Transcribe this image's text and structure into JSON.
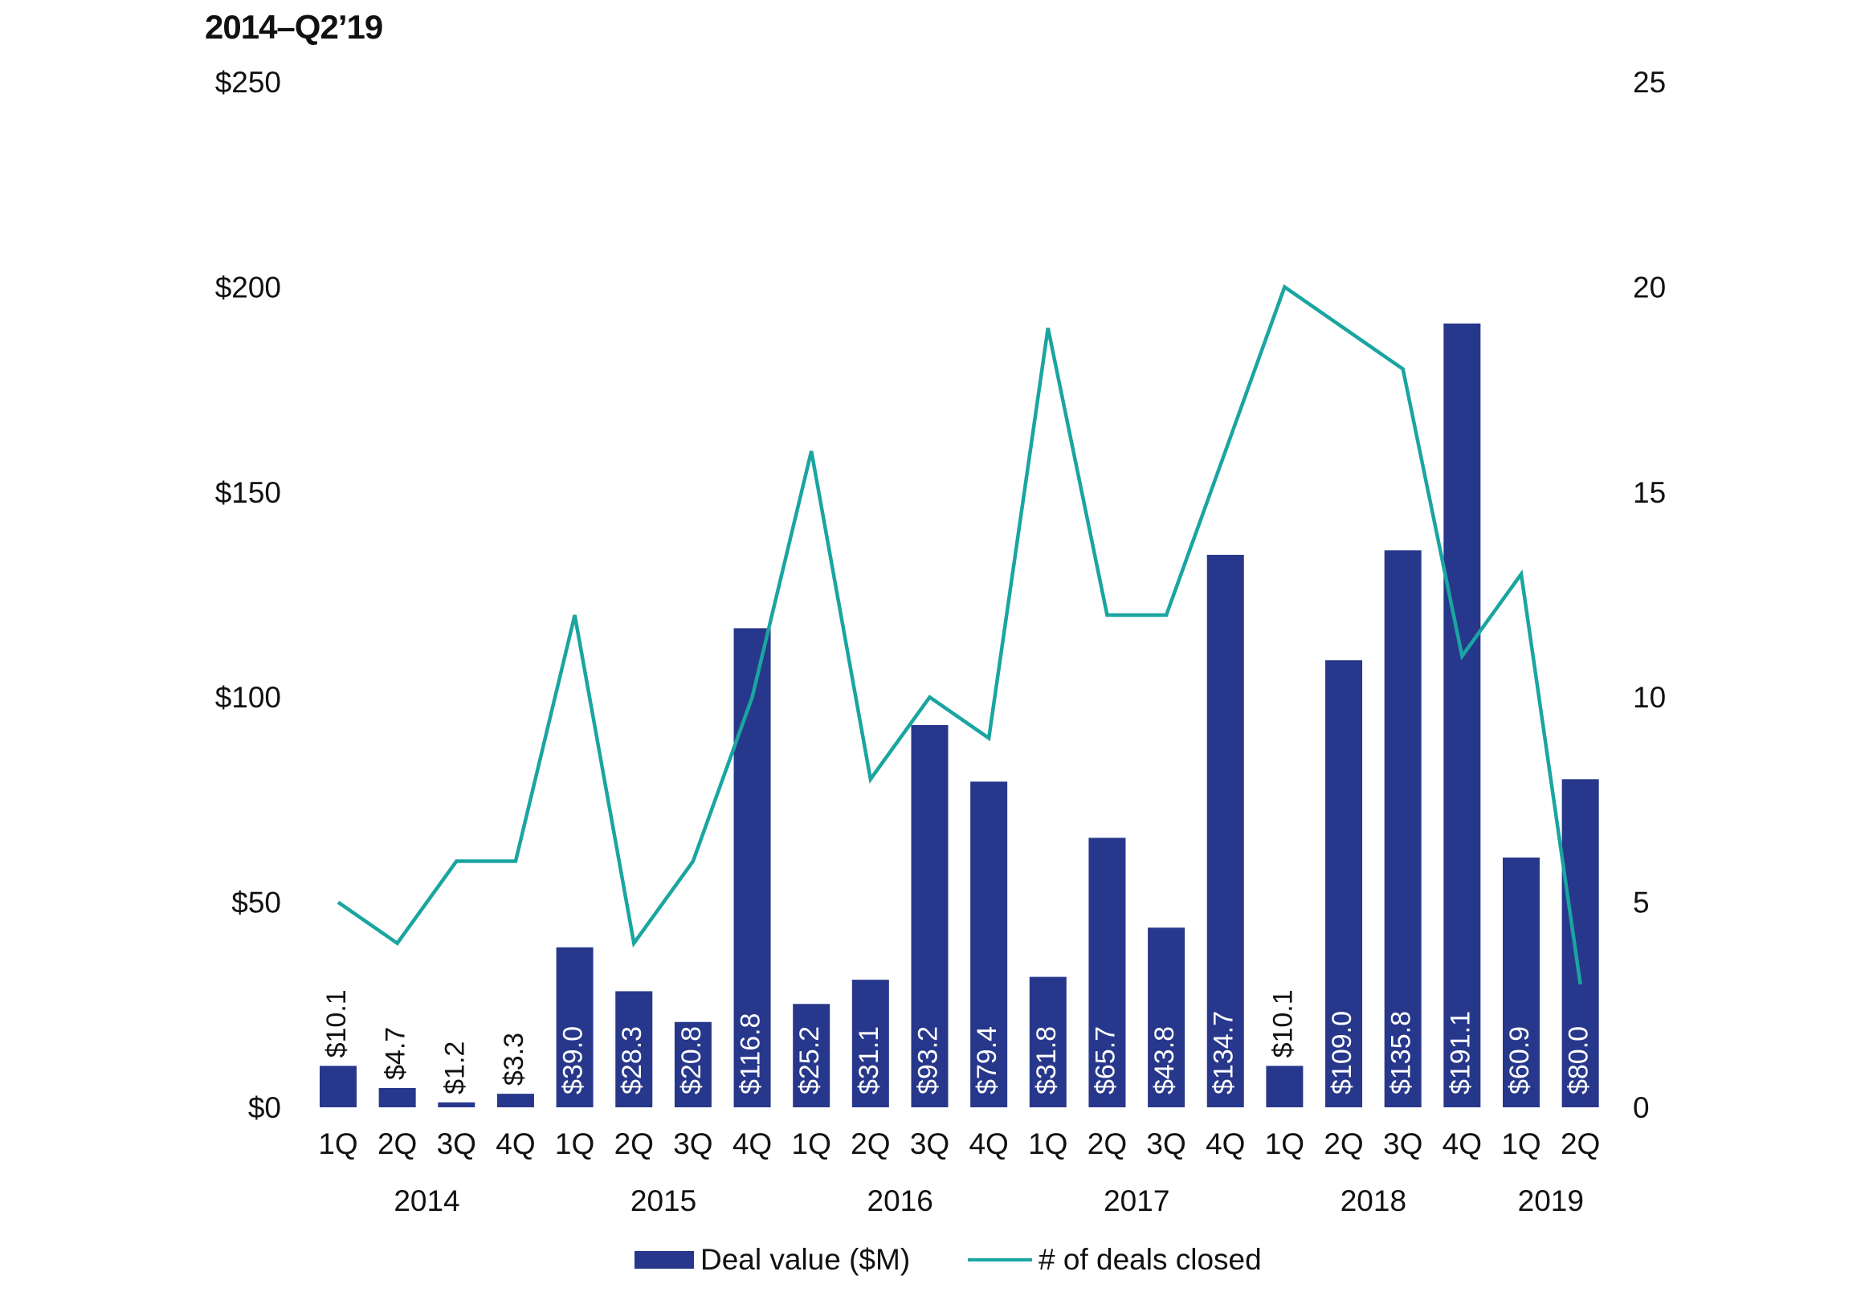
{
  "title": "2014–Q2’19",
  "colors": {
    "bar": "#27378B",
    "line": "#1AA5A0",
    "bar_label": "#ffffff",
    "bar_label_dark": "#111111"
  },
  "legend": {
    "bar_label": "Deal value ($M)",
    "line_label": "# of deals closed"
  },
  "chart_data": {
    "type": "bar",
    "title": "2014–Q2’19",
    "categories": [
      "1Q",
      "2Q",
      "3Q",
      "4Q",
      "1Q",
      "2Q",
      "3Q",
      "4Q",
      "1Q",
      "2Q",
      "3Q",
      "4Q",
      "1Q",
      "2Q",
      "3Q",
      "4Q",
      "1Q",
      "2Q",
      "3Q",
      "4Q",
      "1Q",
      "2Q"
    ],
    "year_groups": [
      {
        "label": "2014",
        "count": 4
      },
      {
        "label": "2015",
        "count": 4
      },
      {
        "label": "2016",
        "count": 4
      },
      {
        "label": "2017",
        "count": 4
      },
      {
        "label": "2018",
        "count": 4
      },
      {
        "label": "2019",
        "count": 2
      }
    ],
    "series": [
      {
        "name": "Deal value ($M)",
        "type": "bar",
        "axis": "left",
        "values": [
          10.1,
          4.7,
          1.2,
          3.3,
          39.0,
          28.3,
          20.8,
          116.8,
          25.2,
          31.1,
          93.2,
          79.4,
          31.8,
          65.7,
          43.8,
          134.7,
          10.1,
          109.0,
          135.8,
          191.1,
          60.9,
          80.0
        ],
        "labels": [
          "$10.1",
          "$4.7",
          "$1.2",
          "$3.3",
          "$39.0",
          "$28.3",
          "$20.8",
          "$116.8",
          "$25.2",
          "$31.1",
          "$93.2",
          "$79.4",
          "$31.8",
          "$65.7",
          "$43.8",
          "$134.7",
          "$10.1",
          "$109.0",
          "$135.8",
          "$191.1",
          "$60.9",
          "$80.0"
        ]
      },
      {
        "name": "# of deals closed",
        "type": "line",
        "axis": "right",
        "values": [
          5,
          4,
          6,
          6,
          12,
          4,
          6,
          10,
          16,
          8,
          10,
          9,
          19,
          12,
          12,
          16,
          20,
          19,
          18,
          11,
          13,
          3
        ]
      }
    ],
    "y_left": {
      "min": 0,
      "max": 250,
      "ticks": [
        0,
        50,
        100,
        150,
        200,
        250
      ],
      "tick_labels": [
        "$0",
        "$50",
        "$100",
        "$150",
        "$200",
        "$250"
      ]
    },
    "y_right": {
      "min": 0,
      "max": 25,
      "ticks": [
        0,
        5,
        10,
        15,
        20,
        25
      ],
      "tick_labels": [
        "0",
        "5",
        "10",
        "15",
        "20",
        "25"
      ]
    },
    "grid": false,
    "legend_position": "bottom-center"
  }
}
